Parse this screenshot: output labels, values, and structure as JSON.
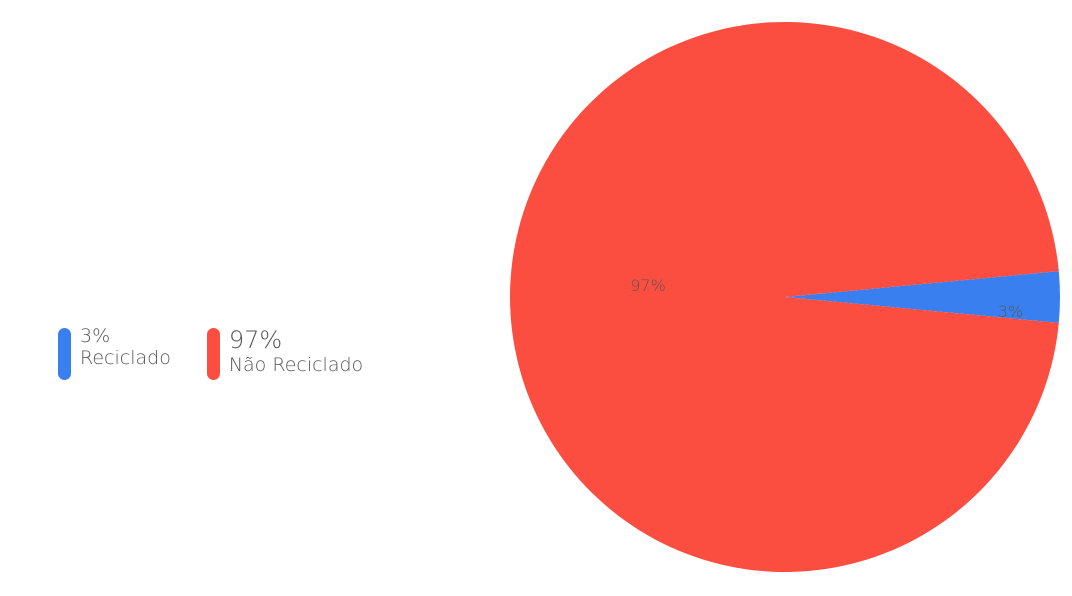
{
  "chart_data": {
    "type": "pie",
    "title": "",
    "categories": [
      "Reciclado",
      "Não Reciclado"
    ],
    "values": [
      3,
      97
    ],
    "labels": [
      "3%",
      "97%"
    ],
    "colors": [
      "#3a7ff0",
      "#fb4e41"
    ],
    "legend_position": "left"
  },
  "legend": {
    "items": [
      {
        "pct": "3%",
        "name": "Reciclado",
        "color": "#3a7ff0"
      },
      {
        "pct": "97%",
        "name": "Não Reciclado",
        "color": "#fb4e41"
      }
    ]
  }
}
